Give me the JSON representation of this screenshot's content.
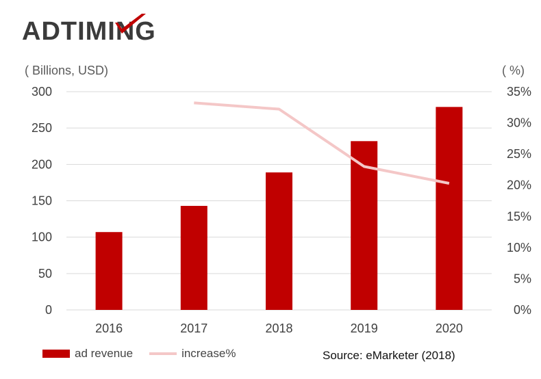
{
  "brand": {
    "logo_text": "ADTIMING",
    "logo_color": "#3b3b3b",
    "accent_color": "#c00000"
  },
  "colors": {
    "bar": "#c00000",
    "line": "#f4c7c7",
    "grid": "#d9d9d9"
  },
  "source": "Source: eMarketer (2018)",
  "chart_data": {
    "type": "bar",
    "categories": [
      "2016",
      "2017",
      "2018",
      "2019",
      "2020"
    ],
    "series": [
      {
        "name": "ad revenue",
        "type": "bar",
        "axis": "left",
        "values": [
          107,
          143,
          189,
          232,
          279
        ]
      },
      {
        "name": "increase%",
        "type": "line",
        "axis": "right",
        "values": [
          null,
          33.2,
          32.2,
          23.0,
          20.3
        ]
      }
    ],
    "left_axis": {
      "unit_label": "( Billions, USD)",
      "ylim": [
        0,
        300
      ],
      "ticks": [
        "0",
        "50",
        "100",
        "150",
        "200",
        "250",
        "300"
      ]
    },
    "right_axis": {
      "unit_label": "( %)",
      "ylim": [
        0,
        35
      ],
      "ticks": [
        "0%",
        "5%",
        "10%",
        "15%",
        "20%",
        "25%",
        "30%",
        "35%"
      ]
    },
    "grid": true,
    "legend_position": "bottom-left"
  }
}
